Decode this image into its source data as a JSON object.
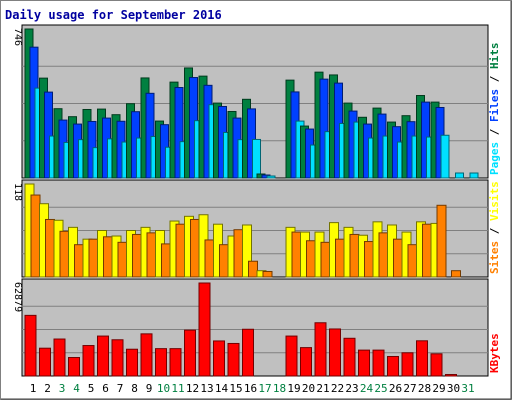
{
  "chart_data": [
    {
      "type": "bar",
      "title": "Daily usage for September 2016",
      "ylabel": "746",
      "ylim": [
        0,
        746
      ],
      "categories": [
        "1",
        "2",
        "3",
        "4",
        "5",
        "6",
        "7",
        "8",
        "9",
        "10",
        "11",
        "12",
        "13",
        "14",
        "15",
        "16",
        "17",
        "18",
        "19",
        "20",
        "21",
        "22",
        "23",
        "24",
        "25",
        "26",
        "27",
        "28",
        "29",
        "30",
        "31"
      ],
      "series": [
        {
          "name": "Hits",
          "color": "#008040",
          "values": [
            746,
            500,
            347,
            307,
            343,
            345,
            317,
            372,
            501,
            285,
            480,
            551,
            510,
            375,
            333,
            394,
            20,
            0,
            490,
            260,
            530,
            516,
            375,
            304,
            350,
            280,
            312,
            413,
            380,
            0,
            0
          ]
        },
        {
          "name": "Files",
          "color": "#0040ff",
          "values": [
            655,
            430,
            290,
            270,
            283,
            300,
            284,
            332,
            424,
            267,
            453,
            503,
            464,
            358,
            300,
            346,
            15,
            0,
            431,
            245,
            495,
            475,
            335,
            270,
            320,
            257,
            282,
            380,
            353,
            0,
            0
          ]
        },
        {
          "name": "Pages",
          "color": "#00e0ff",
          "values": [
            450,
            210,
            178,
            192,
            152,
            196,
            180,
            200,
            208,
            154,
            182,
            287,
            367,
            228,
            192,
            193,
            10,
            0,
            285,
            165,
            232,
            273,
            280,
            200,
            210,
            180,
            210,
            205,
            214,
            25,
            25
          ]
        }
      ],
      "legend": [
        "Pages",
        "Files",
        "Hits"
      ]
    },
    {
      "type": "bar",
      "ylabel": "118",
      "ylim": [
        0,
        118
      ],
      "categories": [
        "1",
        "2",
        "3",
        "4",
        "5",
        "6",
        "7",
        "8",
        "9",
        "10",
        "11",
        "12",
        "13",
        "14",
        "15",
        "16",
        "17",
        "18",
        "19",
        "20",
        "21",
        "22",
        "23",
        "24",
        "25",
        "26",
        "27",
        "28",
        "29",
        "30",
        "31"
      ],
      "series": [
        {
          "name": "Visits",
          "color": "#ffff00",
          "values": [
            118,
            93,
            72,
            63,
            48,
            59,
            52,
            59,
            63,
            59,
            71,
            77,
            79,
            67,
            52,
            66,
            8,
            0,
            63,
            57,
            57,
            69,
            63,
            53,
            70,
            66,
            57,
            70,
            68,
            0,
            0
          ]
        },
        {
          "name": "Sites",
          "color": "#ff8000",
          "values": [
            104,
            73,
            58,
            41,
            48,
            51,
            44,
            54,
            56,
            42,
            67,
            73,
            47,
            41,
            60,
            20,
            7,
            0,
            57,
            46,
            44,
            48,
            54,
            45,
            56,
            48,
            41,
            67,
            91,
            8,
            0
          ]
        }
      ],
      "legend": [
        "Sites",
        "Visits"
      ]
    },
    {
      "type": "bar",
      "ylabel": "62879",
      "ylim": [
        0,
        62879
      ],
      "categories": [
        "1",
        "2",
        "3",
        "4",
        "5",
        "6",
        "7",
        "8",
        "9",
        "10",
        "11",
        "12",
        "13",
        "14",
        "15",
        "16",
        "17",
        "18",
        "19",
        "20",
        "21",
        "22",
        "23",
        "24",
        "25",
        "26",
        "27",
        "28",
        "29",
        "30",
        "31"
      ],
      "series": [
        {
          "name": "KBytes",
          "color": "#ff0000",
          "values": [
            41000,
            18800,
            25000,
            12500,
            20600,
            27000,
            24500,
            18100,
            28500,
            18500,
            18500,
            31000,
            62879,
            23700,
            22000,
            31600,
            0,
            0,
            27000,
            19200,
            36000,
            31800,
            25500,
            17500,
            17500,
            13200,
            15700,
            23800,
            15000,
            1000,
            0
          ]
        }
      ],
      "legend": [
        "KBytes"
      ]
    }
  ],
  "x_labels": [
    "1",
    "2",
    "3",
    "4",
    "5",
    "6",
    "7",
    "8",
    "9",
    "10",
    "11",
    "12",
    "13",
    "14",
    "15",
    "16",
    "17",
    "18",
    "19",
    "20",
    "21",
    "22",
    "23",
    "24",
    "25",
    "26",
    "27",
    "28",
    "29",
    "30",
    "31"
  ],
  "weekend_days": [
    3,
    4,
    10,
    11,
    17,
    18,
    24,
    25,
    31
  ],
  "colors": {
    "title": "#0000a0",
    "background": "#c0c0c0",
    "frame": "#808080",
    "weekday_label": "#000000",
    "weekend_label": "#008040"
  }
}
